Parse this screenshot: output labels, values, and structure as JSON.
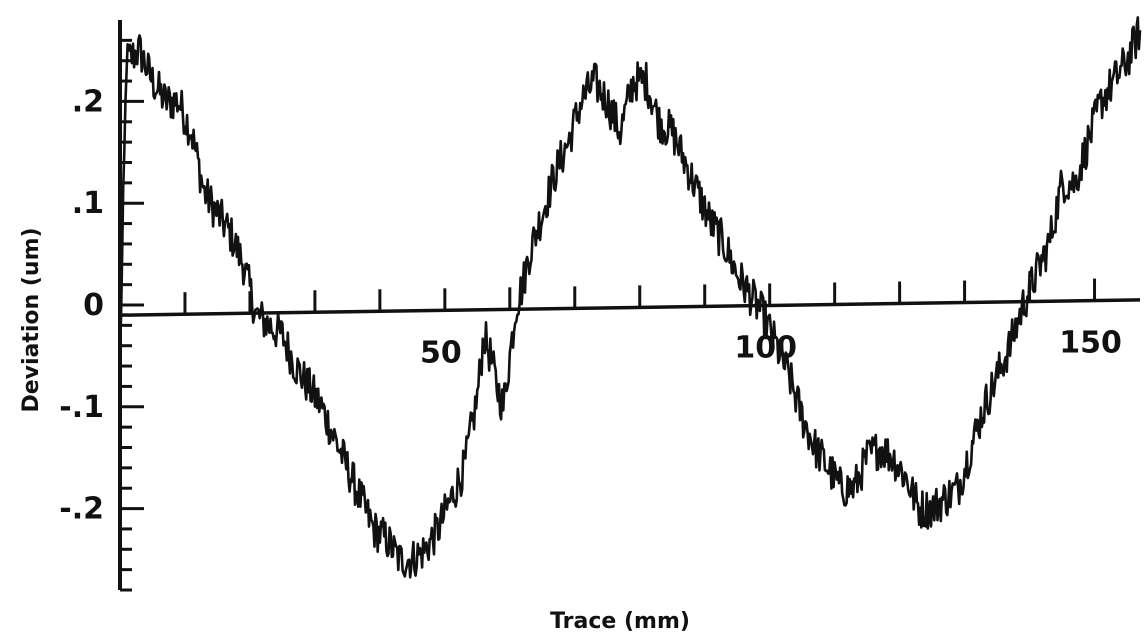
{
  "chart_data": {
    "type": "line",
    "xlabel": "Trace (mm)",
    "ylabel": "Deviation (um)",
    "xlim": [
      0,
      157
    ],
    "ylim": [
      -0.28,
      0.28
    ],
    "x_ticks": [
      {
        "value": 50,
        "label": "50"
      },
      {
        "value": 100,
        "label": "100"
      },
      {
        "value": 150,
        "label": "150"
      }
    ],
    "y_ticks": [
      {
        "value": 0.2,
        "label": ".2"
      },
      {
        "value": 0.1,
        "label": ".1"
      },
      {
        "value": 0,
        "label": "0"
      },
      {
        "value": -0.1,
        "label": "-.1"
      },
      {
        "value": -0.2,
        "label": "-.2"
      }
    ],
    "grid": false,
    "reference_line": {
      "x": [
        0,
        157
      ],
      "y": [
        -0.01,
        0.005
      ]
    },
    "series": [
      {
        "color": "#111111",
        "x": [
          0,
          1,
          3,
          5,
          7,
          9,
          11,
          13,
          15,
          17,
          19,
          21,
          23,
          25,
          27,
          29,
          31,
          33,
          35,
          37,
          39,
          41,
          43,
          45,
          47,
          49,
          51,
          53,
          55,
          56,
          57,
          58,
          59,
          60,
          61,
          62,
          63,
          65,
          67,
          69,
          71,
          73,
          75,
          77,
          79,
          81,
          83,
          85,
          87,
          89,
          91,
          93,
          95,
          97,
          99,
          101,
          103,
          105,
          107,
          109,
          111,
          113,
          115,
          117,
          119,
          121,
          123,
          125,
          127,
          129,
          131,
          133,
          135,
          137,
          139,
          141,
          143,
          145,
          147,
          149,
          151,
          153,
          155,
          157
        ],
        "y": [
          -0.05,
          0.24,
          0.25,
          0.22,
          0.2,
          0.2,
          0.17,
          0.11,
          0.09,
          0.07,
          0.04,
          -0.01,
          -0.02,
          -0.03,
          -0.06,
          -0.08,
          -0.1,
          -0.13,
          -0.16,
          -0.19,
          -0.22,
          -0.23,
          -0.25,
          -0.25,
          -0.24,
          -0.22,
          -0.19,
          -0.16,
          -0.09,
          -0.03,
          -0.05,
          -0.08,
          -0.1,
          -0.05,
          0.0,
          0.02,
          0.05,
          0.09,
          0.13,
          0.16,
          0.2,
          0.22,
          0.2,
          0.17,
          0.22,
          0.22,
          0.18,
          0.17,
          0.14,
          0.11,
          0.08,
          0.06,
          0.03,
          0.01,
          -0.01,
          -0.04,
          -0.07,
          -0.11,
          -0.14,
          -0.16,
          -0.18,
          -0.18,
          -0.15,
          -0.14,
          -0.15,
          -0.17,
          -0.2,
          -0.2,
          -0.19,
          -0.18,
          -0.14,
          -0.1,
          -0.07,
          -0.04,
          0.0,
          0.03,
          0.06,
          0.12,
          0.12,
          0.16,
          0.2,
          0.22,
          0.24,
          0.27
        ]
      }
    ]
  }
}
